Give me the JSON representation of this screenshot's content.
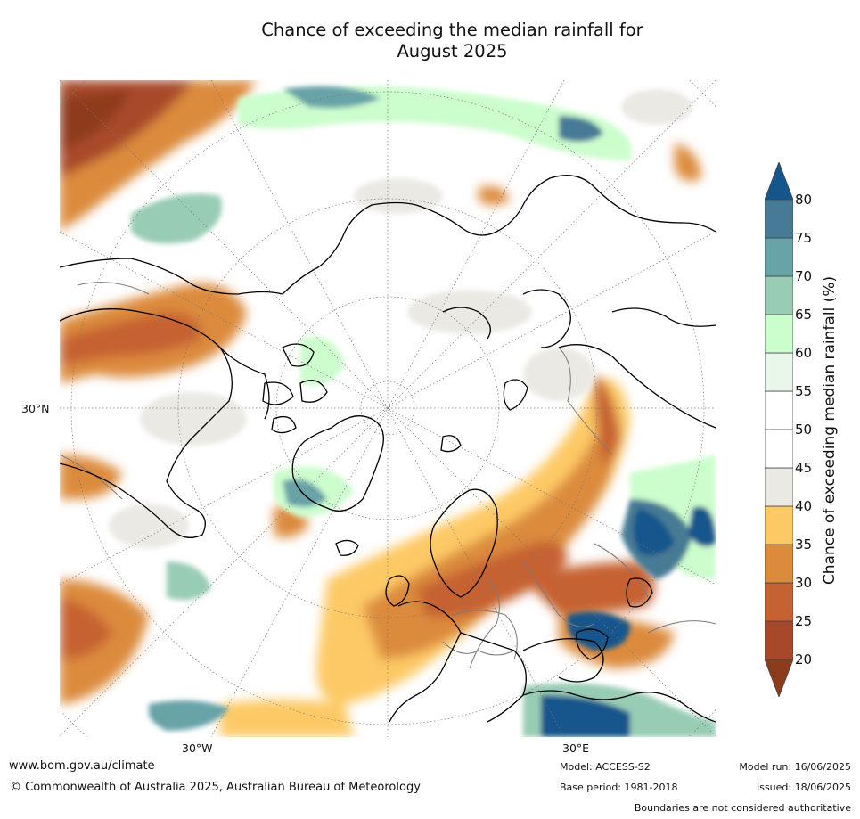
{
  "title": {
    "line1": "Chance of exceeding the median rainfall for",
    "line2": "August 2025"
  },
  "map": {
    "projection": "north-polar",
    "lat_labels": [
      "30°N"
    ],
    "lon_labels": [
      "30°W",
      "30°E"
    ],
    "features": [
      "coastlines",
      "country boundaries",
      "lat/lon graticule",
      "probability shading"
    ]
  },
  "colorbar": {
    "label": "Chance of exceeding median rainfall (%)",
    "ticks": [
      "20",
      "25",
      "30",
      "35",
      "40",
      "45",
      "50",
      "55",
      "60",
      "65",
      "70",
      "75",
      "80"
    ],
    "bands": [
      {
        "range": "<20",
        "color": "#8e3a1d"
      },
      {
        "range": "20-25",
        "color": "#a8482a"
      },
      {
        "range": "25-30",
        "color": "#c66231"
      },
      {
        "range": "30-35",
        "color": "#dc8b3c"
      },
      {
        "range": "35-40",
        "color": "#fdc966"
      },
      {
        "range": "40-45",
        "color": "#ebe9e4"
      },
      {
        "range": "45-50",
        "color": "#ffffff"
      },
      {
        "range": "50-55",
        "color": "#ffffff"
      },
      {
        "range": "55-60",
        "color": "#e9f6ea"
      },
      {
        "range": "60-65",
        "color": "#ccfdcd"
      },
      {
        "range": "65-70",
        "color": "#99ccb5"
      },
      {
        "range": "70-75",
        "color": "#68a3a8"
      },
      {
        "range": "75-80",
        "color": "#467a95"
      },
      {
        "range": ">80",
        "color": "#15568c"
      }
    ]
  },
  "footer": {
    "url": "www.bom.gov.au/climate",
    "copyright": "© Commonwealth of Australia 2025, Australian Bureau of Meteorology",
    "model": "Model: ACCESS-S2",
    "base_period": "Base period: 1981-2018",
    "model_run": "Model run: 16/06/2025",
    "issued": "Issued: 18/06/2025",
    "disclaimer": "Boundaries are not considered authoritative"
  }
}
